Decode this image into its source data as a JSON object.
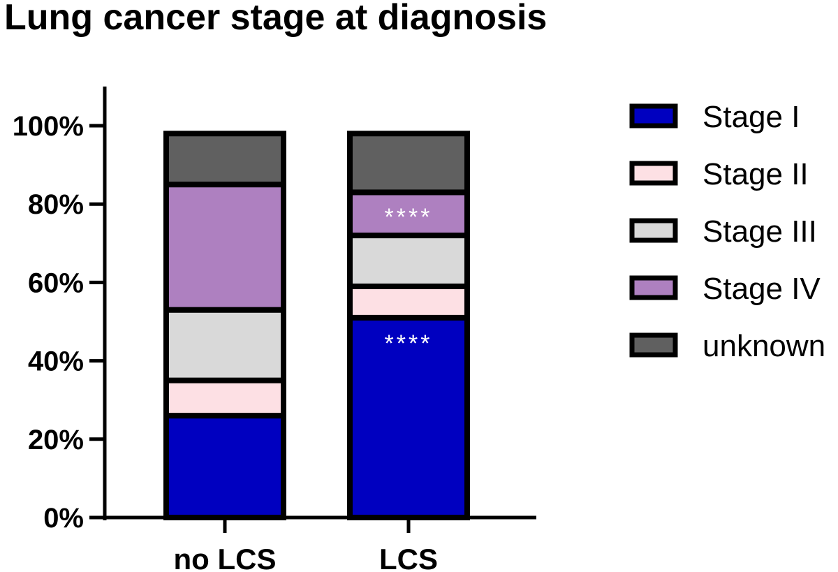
{
  "chart_data": {
    "type": "bar",
    "stacked": true,
    "title": "Lung cancer stage at diagnosis",
    "xlabel": "",
    "ylabel": "",
    "ylim": [
      0,
      110
    ],
    "yticks": [
      "0%",
      "20%",
      "40%",
      "60%",
      "80%",
      "100%"
    ],
    "ytick_values": [
      0,
      20,
      40,
      60,
      80,
      100
    ],
    "categories": [
      "no LCS",
      "LCS"
    ],
    "series": [
      {
        "name": "Stage I",
        "values": [
          26,
          51
        ],
        "color": "#0000c0"
      },
      {
        "name": "Stage II",
        "values": [
          9,
          8
        ],
        "color": "#fde0e4"
      },
      {
        "name": "Stage III",
        "values": [
          18,
          13
        ],
        "color": "#d9d9d9"
      },
      {
        "name": "Stage IV",
        "values": [
          32,
          11
        ],
        "color": "#ae80c0"
      },
      {
        "name": "unknown",
        "values": [
          13,
          15
        ],
        "color": "#606060"
      }
    ],
    "annotations": [
      {
        "text": "****",
        "category": "LCS",
        "series": "Stage IV"
      },
      {
        "text": "****",
        "category": "LCS",
        "series": "Stage I"
      }
    ],
    "legend_position": "right",
    "grid": false
  }
}
